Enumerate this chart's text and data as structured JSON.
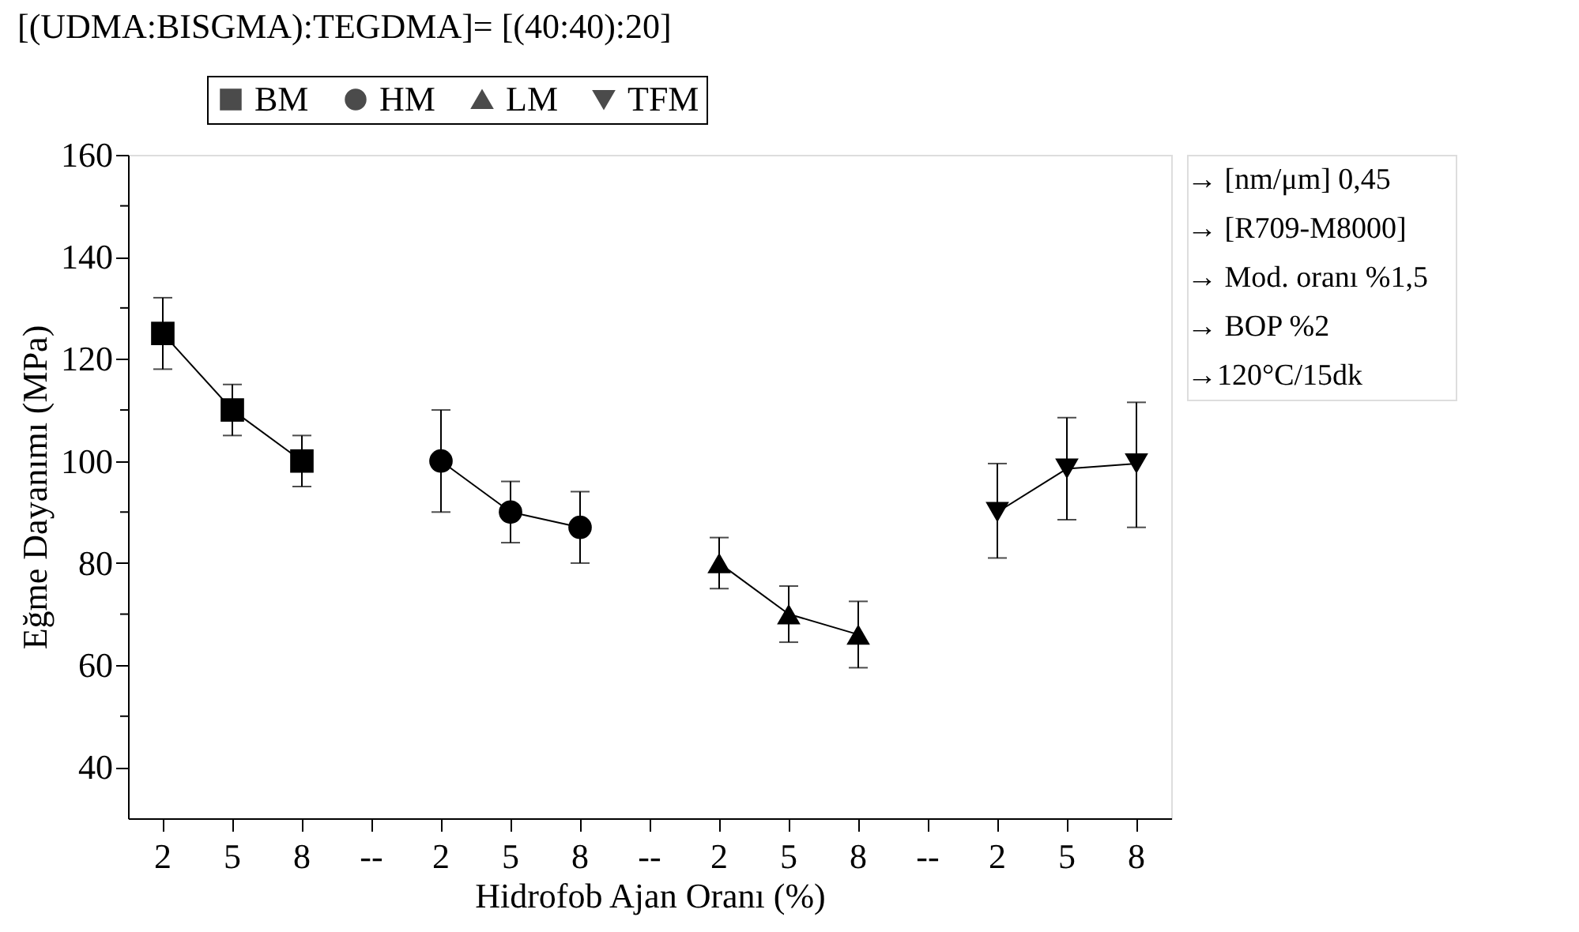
{
  "chart_data": {
    "type": "line",
    "title": "[(UDMA:BISGMA):TEGDMA]= [(40:40):20]",
    "xlabel": "Hidrofob Ajan Oranı (%)",
    "ylabel": "Eğme Dayanımı (MPa)",
    "categories": [
      "2",
      "5",
      "8",
      "--",
      "2",
      "5",
      "8",
      "--",
      "2",
      "5",
      "8",
      "--",
      "2",
      "5",
      "8"
    ],
    "series": [
      {
        "name": "BM",
        "color": "#000000",
        "marker": "square",
        "values": [
          125,
          110,
          100,
          null,
          null,
          null,
          null,
          null,
          null,
          null,
          null,
          null,
          null,
          null,
          null
        ],
        "errors": [
          [
            118,
            132
          ],
          [
            105,
            115
          ],
          [
            95,
            105
          ],
          null,
          null,
          null,
          null,
          null,
          null,
          null,
          null,
          null,
          null,
          null,
          null
        ]
      },
      {
        "name": "HM",
        "color": "#000000",
        "marker": "circle",
        "values": [
          null,
          null,
          null,
          null,
          100,
          90,
          87,
          null,
          null,
          null,
          null,
          null,
          null,
          null,
          null
        ],
        "errors": [
          null,
          null,
          null,
          null,
          [
            90,
            110
          ],
          [
            84,
            96
          ],
          [
            80,
            94
          ],
          null,
          null,
          null,
          null,
          null,
          null,
          null,
          null
        ]
      },
      {
        "name": "LM",
        "color": "#000000",
        "marker": "triangle",
        "values": [
          null,
          null,
          null,
          null,
          null,
          null,
          null,
          null,
          80,
          70,
          66,
          null,
          null,
          null,
          null
        ],
        "errors": [
          null,
          null,
          null,
          null,
          null,
          null,
          null,
          null,
          [
            75,
            85
          ],
          [
            64.5,
            75.5
          ],
          [
            59.5,
            72.5
          ],
          null,
          null,
          null,
          null
        ]
      },
      {
        "name": "TFM",
        "color": "#000000",
        "marker": "triangle-down",
        "values": [
          null,
          null,
          null,
          null,
          null,
          null,
          null,
          null,
          null,
          null,
          null,
          null,
          90,
          98.5,
          99.5
        ],
        "errors": [
          null,
          null,
          null,
          null,
          null,
          null,
          null,
          null,
          null,
          null,
          null,
          null,
          [
            81,
            99.5
          ],
          [
            88.5,
            108.5
          ],
          [
            87,
            111.5
          ]
        ]
      }
    ],
    "ylim": [
      30,
      160
    ],
    "yticks": [
      40,
      {
        "value": 50,
        "label": null
      },
      60,
      {
        "value": 70,
        "label": null
      },
      80,
      {
        "value": 90,
        "label": null
      },
      100,
      {
        "value": 110,
        "label": null
      },
      120,
      {
        "value": 130,
        "label": null
      },
      140,
      {
        "value": 150,
        "label": null
      },
      160
    ],
    "grid": false,
    "legend": "top",
    "annotations": [
      "→ [nm/μm] 0,45",
      "→ [R709-M8000]",
      "→ Mod. oranı %1,5",
      "→ BOP %2",
      "→120°C/15dk"
    ]
  }
}
